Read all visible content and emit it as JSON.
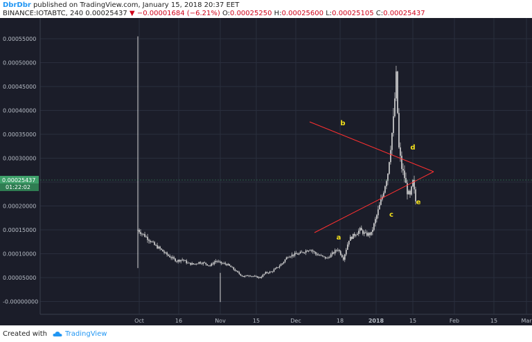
{
  "header": {
    "user": "DbrDbr",
    "published": " published on TradingView.com, January 15, 2018 20:37 EET",
    "symbol": "BINANCE:IOTABTC, 240",
    "last": "0.00025437",
    "change": "−0.00001684 (−6.21%)",
    "ohlc": {
      "o_label": "O:",
      "o": "0.00025250",
      "h_label": "H:",
      "h": "0.00025600",
      "l_label": "L:",
      "l": "0.00025105",
      "c_label": "C:",
      "c": "0.00025437"
    }
  },
  "footer": {
    "created_with": "Created with",
    "brand": "TradingView"
  },
  "colors": {
    "background": "#1b1d29",
    "grid": "#2a2e3d",
    "axis_text": "#b7bdc6",
    "candles": "#d9d9d9",
    "trendline": "#ff3030",
    "wave_label": "#f3e01b",
    "price_tag": "#3ea06a"
  },
  "price_tag": {
    "value": "0.00025437",
    "countdown": "01:22:02"
  },
  "chart_data": {
    "type": "candlestick",
    "y_ticks": [
      "0.00055000",
      "0.00050000",
      "0.00045000",
      "0.00040000",
      "0.00035000",
      "0.00030000",
      "0.00025000",
      "0.00020000",
      "0.00015000",
      "0.00010000",
      "0.00005000",
      "-0.00000000"
    ],
    "ylim": [
      -1e-05,
      0.00057
    ],
    "x_ticks": [
      "Oct",
      "16",
      "Nov",
      "15",
      "Dec",
      "18",
      "2018",
      "15",
      "Feb",
      "15",
      "Mar"
    ],
    "price_path": [
      [
        0.0,
        0.00015
      ],
      [
        0.02,
        0.00014
      ],
      [
        0.04,
        0.00013
      ],
      [
        0.06,
        0.000118
      ],
      [
        0.08,
        0.00011
      ],
      [
        0.1,
        0.0001
      ],
      [
        0.12,
        9.2e-05
      ],
      [
        0.14,
        8.5e-05
      ],
      [
        0.16,
        8.8e-05
      ],
      [
        0.18,
        8e-05
      ],
      [
        0.2,
        7.8e-05
      ],
      [
        0.22,
        8.2e-05
      ],
      [
        0.24,
        8e-05
      ],
      [
        0.26,
        7.5e-05
      ],
      [
        0.28,
        8.5e-05
      ],
      [
        0.3,
        8e-05
      ],
      [
        0.32,
        7.8e-05
      ],
      [
        0.34,
        7e-05
      ],
      [
        0.36,
        6e-05
      ],
      [
        0.38,
        5.2e-05
      ],
      [
        0.4,
        5.5e-05
      ],
      [
        0.42,
        5.2e-05
      ],
      [
        0.44,
        5e-05
      ],
      [
        0.46,
        6e-05
      ],
      [
        0.48,
        6.2e-05
      ],
      [
        0.5,
        7e-05
      ],
      [
        0.52,
        8e-05
      ],
      [
        0.54,
        9.5e-05
      ],
      [
        0.56,
        9.8e-05
      ],
      [
        0.58,
        0.0001
      ],
      [
        0.6,
        0.000105
      ],
      [
        0.62,
        0.00011
      ],
      [
        0.64,
        0.0001
      ],
      [
        0.66,
        9.5e-05
      ],
      [
        0.68,
        9e-05
      ],
      [
        0.7,
        0.0001
      ],
      [
        0.72,
        0.00011
      ],
      [
        0.74,
        9e-05
      ],
      [
        0.76,
        0.00013
      ],
      [
        0.78,
        0.00014
      ],
      [
        0.8,
        0.00015
      ],
      [
        0.82,
        0.00014
      ],
      [
        0.84,
        0.000142
      ],
      [
        0.86,
        0.00018
      ],
      [
        0.88,
        0.00022
      ],
      [
        0.9,
        0.00027
      ],
      [
        0.92,
        0.00038
      ],
      [
        0.93,
        0.00047
      ],
      [
        0.94,
        0.00032
      ],
      [
        0.95,
        0.00028
      ],
      [
        0.96,
        0.00026
      ],
      [
        0.97,
        0.00023
      ],
      [
        0.98,
        0.00022
      ],
      [
        0.99,
        0.00025
      ],
      [
        1.0,
        0.00021
      ]
    ],
    "wave_labels": [
      {
        "text": "a",
        "value": "a"
      },
      {
        "text": "b",
        "value": "b"
      },
      {
        "text": "c",
        "value": "c"
      },
      {
        "text": "d",
        "value": "d"
      },
      {
        "text": "e",
        "value": "e"
      }
    ],
    "grid": true,
    "legend": "none"
  }
}
